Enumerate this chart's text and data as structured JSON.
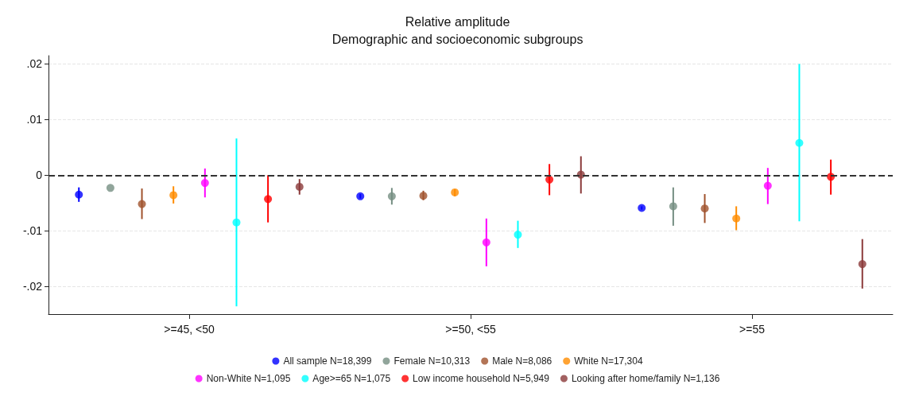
{
  "chart_data": {
    "type": "scatter",
    "title": "Relative amplitude",
    "subtitle": "Demographic and socioeconomic subgroups",
    "categories": [
      ">=45, <50",
      ">=50, <55",
      ">=55"
    ],
    "series": [
      {
        "name": "All sample N=18,399",
        "color": "#0000ff",
        "values": [
          -0.0035,
          -0.0038,
          -0.0059
        ],
        "errors": [
          [
            -0.0048,
            -0.0022
          ],
          [
            -0.0042,
            -0.0034
          ],
          [
            -0.0062,
            -0.0056
          ]
        ]
      },
      {
        "name": "Female N=10,313",
        "color": "#758e82",
        "values": [
          -0.0023,
          -0.0038,
          -0.0056
        ],
        "errors": [
          null,
          [
            -0.0053,
            -0.0023
          ],
          [
            -0.0091,
            -0.0022
          ]
        ]
      },
      {
        "name": "Male N=8,086",
        "color": "#a0522d",
        "values": [
          -0.0052,
          -0.0037,
          -0.006
        ],
        "errors": [
          [
            -0.0079,
            -0.0024
          ],
          [
            -0.0045,
            -0.0028
          ],
          [
            -0.0086,
            -0.0034
          ]
        ]
      },
      {
        "name": "White N=17,304",
        "color": "#ff8c00",
        "values": [
          -0.0036,
          -0.0031,
          -0.0078
        ],
        "errors": [
          [
            -0.0051,
            -0.002
          ],
          [
            -0.0038,
            -0.0025
          ],
          [
            -0.0099,
            -0.0056
          ]
        ]
      },
      {
        "name": "Non-White N=1,095",
        "color": "#ff00ff",
        "values": [
          -0.0014,
          -0.0121,
          -0.0019
        ],
        "errors": [
          [
            -0.004,
            0.0012
          ],
          [
            -0.0164,
            -0.0078
          ],
          [
            -0.0052,
            0.0013
          ]
        ]
      },
      {
        "name": "Age>=65 N=1,075",
        "color": "#00ffff",
        "values": [
          -0.0085,
          -0.0107,
          0.0058
        ],
        "errors": [
          [
            -0.0236,
            0.0066
          ],
          [
            -0.0131,
            -0.0082
          ],
          [
            -0.0083,
            0.02
          ]
        ]
      },
      {
        "name": "Low income household N=5,949",
        "color": "#ff0000",
        "values": [
          -0.0043,
          -0.0008,
          -0.0003
        ],
        "errors": [
          [
            -0.0085,
            0
          ],
          [
            -0.0036,
            0.002
          ],
          [
            -0.0035,
            0.0028
          ]
        ]
      },
      {
        "name": "Looking after home/family N=1,136",
        "color": "#8b3a3a",
        "values": [
          -0.0021,
          0.0001,
          -0.016
        ],
        "errors": [
          [
            -0.0035,
            -0.0007
          ],
          [
            -0.0033,
            0.0034
          ],
          [
            -0.0204,
            -0.0115
          ]
        ]
      }
    ],
    "ylim": [
      -0.025,
      0.0215
    ],
    "yticks": [
      {
        "value": -0.02,
        "label": "-.02"
      },
      {
        "value": -0.01,
        "label": "-.01"
      },
      {
        "value": 0,
        "label": "0"
      },
      {
        "value": 0.01,
        "label": ".01"
      },
      {
        "value": 0.02,
        "label": ".02"
      }
    ],
    "ref_lines": [
      {
        "axis": "y",
        "value": 0,
        "color": "#333333",
        "line_style": "dashed"
      }
    ],
    "grid": "y",
    "legend": "bottom",
    "marker": "circle"
  }
}
